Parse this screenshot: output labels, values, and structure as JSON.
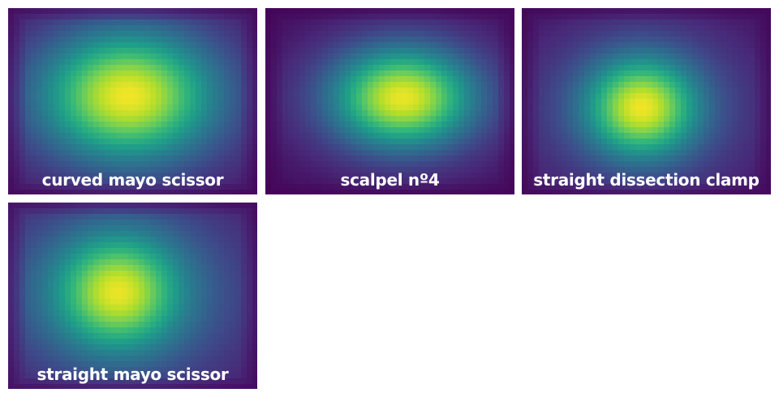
{
  "chart_data": {
    "type": "heatmap",
    "colormap": "viridis",
    "colormap_stops": [
      "#440154",
      "#482878",
      "#3e4989",
      "#31688e",
      "#26828e",
      "#1f9e89",
      "#35b779",
      "#6ece58",
      "#b5de2b",
      "#fde725"
    ],
    "panels": [
      {
        "title": "curved mayo scissor",
        "peak": [
          0.48,
          0.47
        ],
        "spread": [
          0.22,
          0.22
        ],
        "halo_spread": [
          0.4,
          0.38
        ],
        "halo_weight": 0.35,
        "peak_level": 0.98
      },
      {
        "title": "scalpel nº4",
        "peak": [
          0.55,
          0.48
        ],
        "spread": [
          0.19,
          0.18
        ],
        "halo_spread": [
          0.38,
          0.33
        ],
        "halo_weight": 0.22,
        "peak_level": 0.97
      },
      {
        "title": "straight dissection clamp",
        "peak": [
          0.48,
          0.53
        ],
        "spread": [
          0.15,
          0.18
        ],
        "halo_spread": [
          0.38,
          0.38
        ],
        "halo_weight": 0.28,
        "peak_level": 0.98
      },
      {
        "title": "straight mayo scissor",
        "peak": [
          0.44,
          0.48
        ],
        "spread": [
          0.16,
          0.2
        ],
        "halo_spread": [
          0.42,
          0.42
        ],
        "halo_weight": 0.4,
        "peak_level": 0.97
      }
    ]
  }
}
